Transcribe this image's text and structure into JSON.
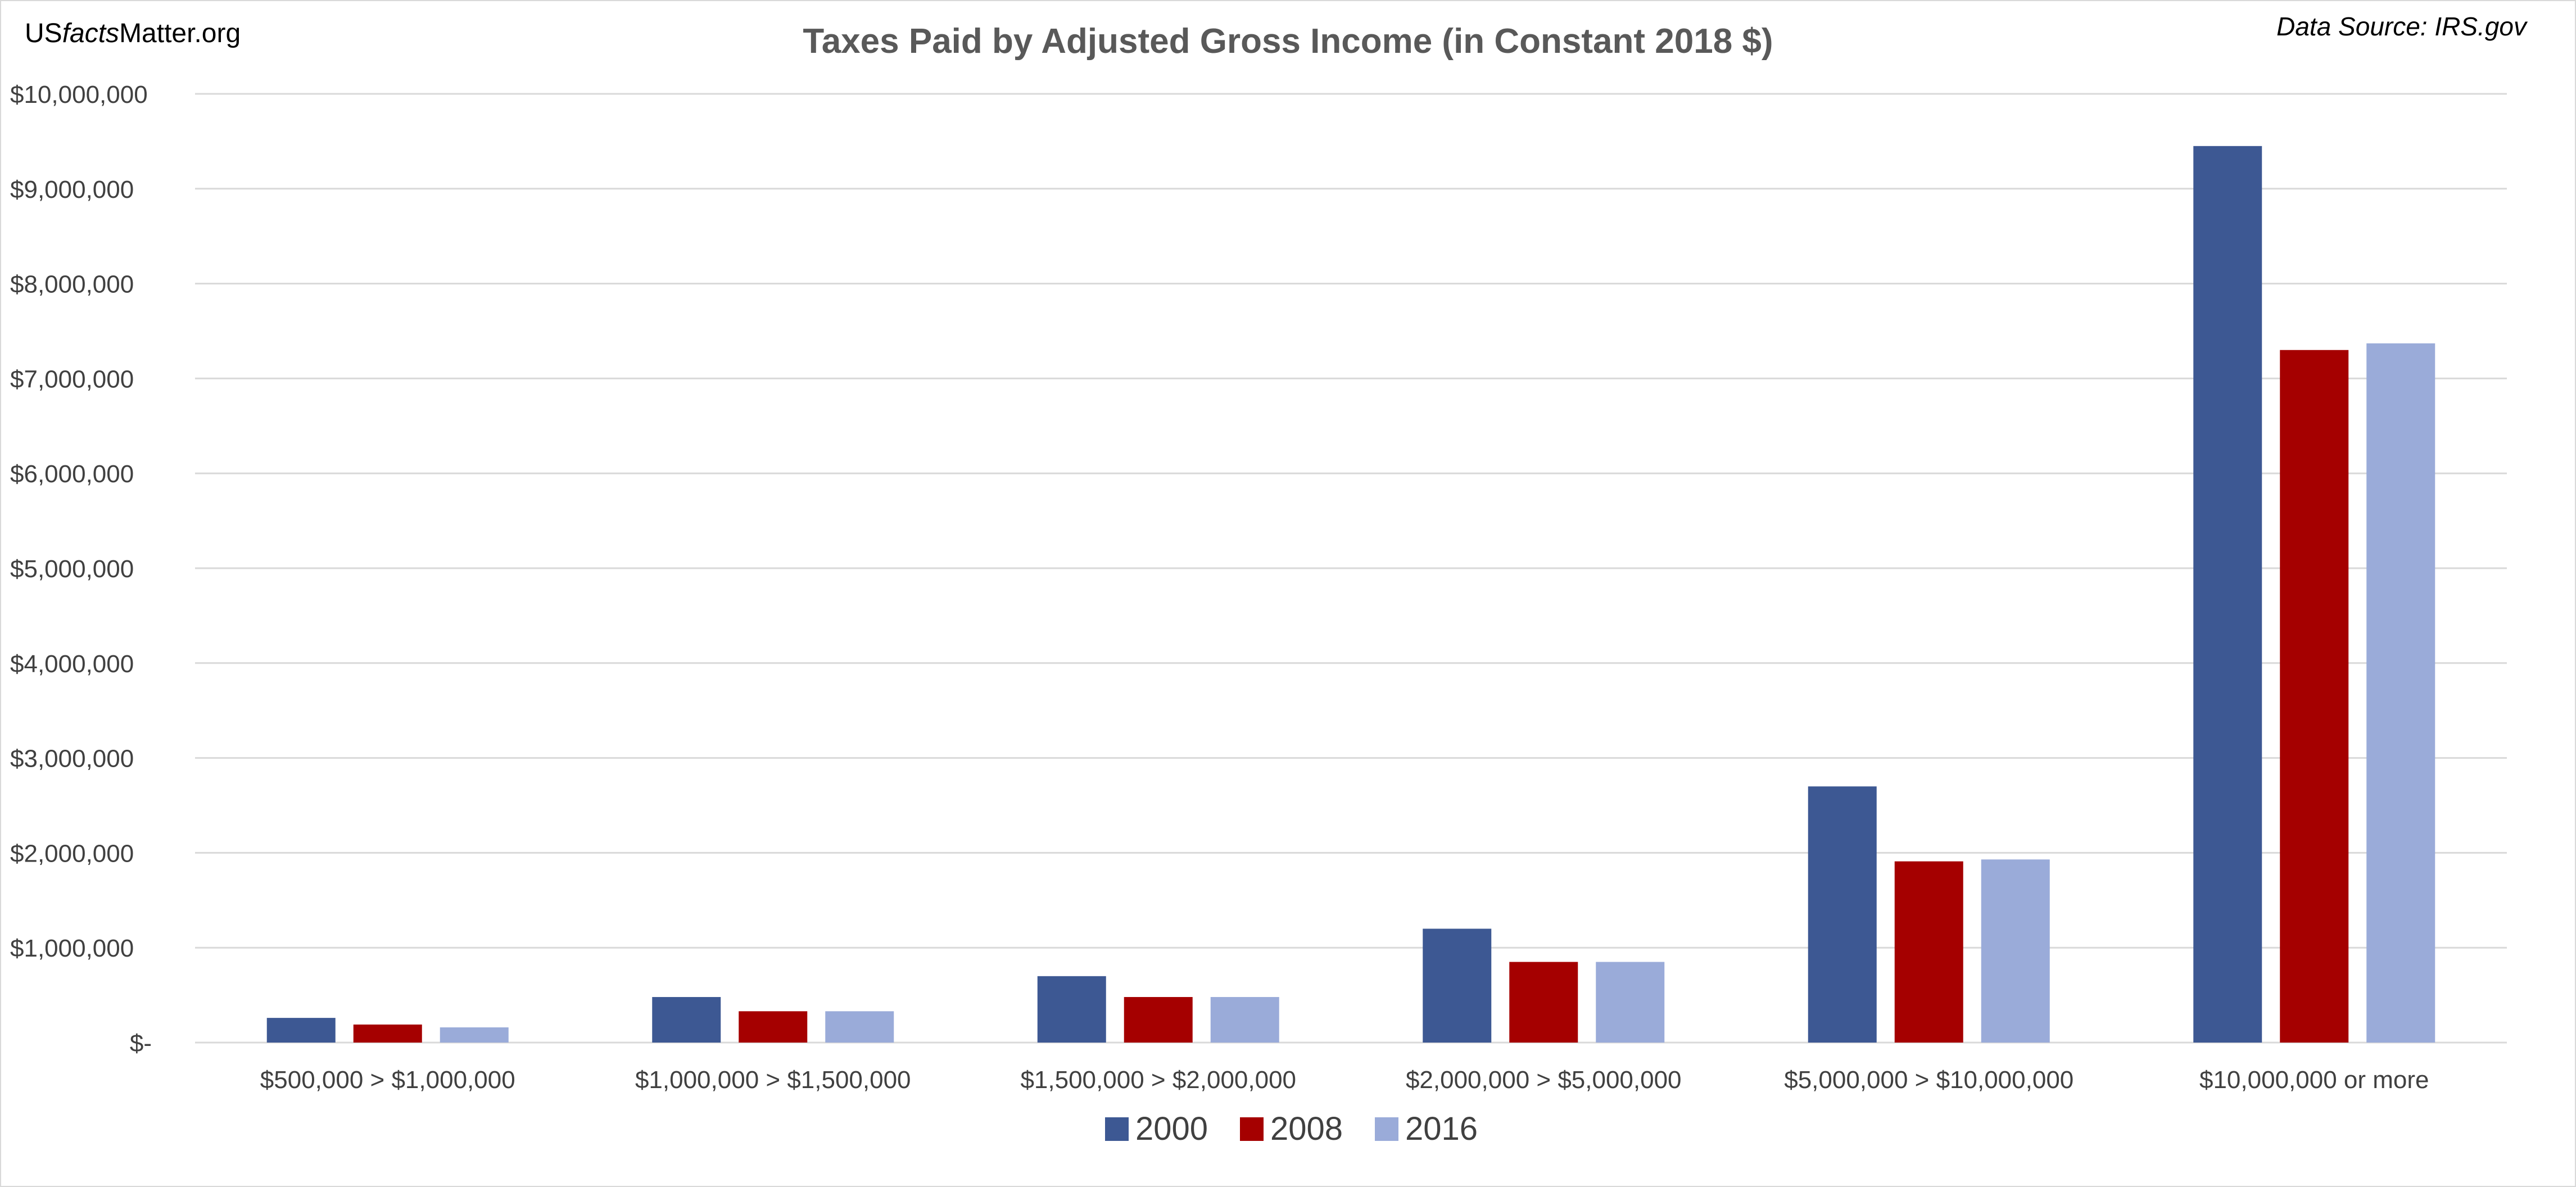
{
  "header": {
    "brand_prefix": "US",
    "brand_italic": "facts",
    "brand_suffix": "Matter.org",
    "source": "Data Source: IRS.gov"
  },
  "colors": {
    "series_2000": "#3d5893",
    "series_2008": "#a50000",
    "series_2016": "#9aabd9",
    "grid": "#d9d9d9",
    "axis_text": "#404040",
    "title": "#595959"
  },
  "chart_data": {
    "type": "bar",
    "title": "Taxes Paid by Adjusted Gross Income (in Constant 2018 $)",
    "xlabel": "",
    "ylabel": "",
    "ylim": [
      0,
      10000000
    ],
    "yticks": [
      0,
      1000000,
      2000000,
      3000000,
      4000000,
      5000000,
      6000000,
      7000000,
      8000000,
      9000000,
      10000000
    ],
    "ytick_labels": [
      "$-",
      "$1,000,000",
      "$2,000,000",
      "$3,000,000",
      "$4,000,000",
      "$5,000,000",
      "$6,000,000",
      "$7,000,000",
      "$8,000,000",
      "$9,000,000",
      "$10,000,000"
    ],
    "categories": [
      "$500,000 > $1,000,000",
      "$1,000,000 > $1,500,000",
      "$1,500,000 > $2,000,000",
      "$2,000,000 > $5,000,000",
      "$5,000,000 > $10,000,000",
      "$10,000,000 or more"
    ],
    "series": [
      {
        "name": "2000",
        "color": "#3d5893",
        "values": [
          260000,
          480000,
          700000,
          1200000,
          2700000,
          9450000
        ]
      },
      {
        "name": "2008",
        "color": "#a50000",
        "values": [
          190000,
          330000,
          480000,
          850000,
          1910000,
          7300000
        ]
      },
      {
        "name": "2016",
        "color": "#9aabd9",
        "values": [
          160000,
          330000,
          480000,
          850000,
          1930000,
          7370000
        ]
      }
    ],
    "grid": true,
    "legend_position": "bottom"
  }
}
